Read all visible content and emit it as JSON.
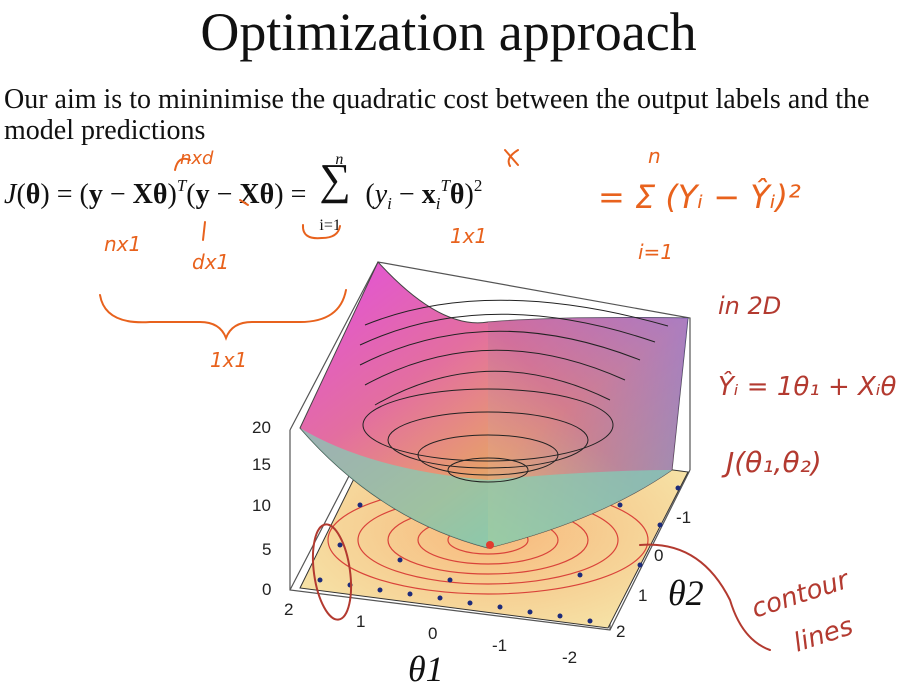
{
  "slide": {
    "title": "Optimization approach",
    "paragraph": "Our aim is to mininimise the quadratic cost between the output labels and the model predictions"
  },
  "equation": {
    "lhs": "J(θ) = ",
    "sum_upper": "n",
    "sum_lower": "i=1",
    "transpose": "T"
  },
  "annotations": {
    "dims_nxd": "nxd",
    "dims_nx1": "nx1",
    "dims_dx1": "dx1",
    "dims_1x1_mid": "1x1",
    "dims_1x1_under_brace": "1x1",
    "rhs_sum": "= Σ (Yᵢ − Ŷᵢ)²",
    "rhs_sum_top": "n",
    "rhs_sum_bottom": "i=1",
    "in_2d": "in 2D",
    "yhat_model": "Ŷᵢ = 1θ₁ + Xᵢθ₂",
    "j_theta": "J(θ₁,θ₂)",
    "contour_1": "contour",
    "contour_2": "lines"
  },
  "figure": {
    "z_ticks": [
      "20",
      "15",
      "10",
      "5",
      "0"
    ],
    "theta1_ticks": [
      "2",
      "1",
      "0",
      "-1",
      "-2"
    ],
    "theta2_ticks": [
      "-1",
      "0",
      "1",
      "2"
    ],
    "theta1_label": "θ1",
    "theta2_label": "θ2"
  },
  "colors": {
    "ink_orange": "#e8621d",
    "ink_red": "#b33a30"
  }
}
